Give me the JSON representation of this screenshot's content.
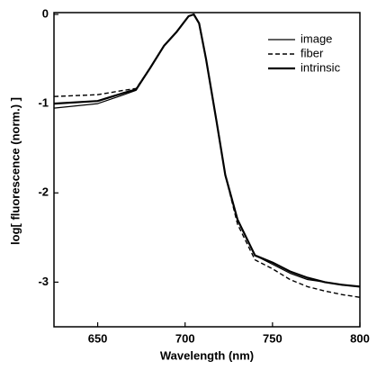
{
  "chart_data": {
    "type": "line",
    "x_label": "Wavelength (nm)",
    "y_label": "log[ fluorescence (norm.) ]",
    "x": [
      625,
      650,
      665,
      672,
      680,
      688,
      695,
      702,
      705,
      708,
      712,
      718,
      723,
      730,
      740,
      750,
      760,
      770,
      780,
      790,
      800
    ],
    "series": [
      {
        "name": "image",
        "color": "#000000",
        "width": 1.2,
        "dash": false,
        "values": [
          -1.05,
          -1.0,
          -0.9,
          -0.85,
          -0.6,
          -0.35,
          -0.2,
          -0.02,
          0,
          -0.1,
          -0.5,
          -1.2,
          -1.8,
          -2.3,
          -2.7,
          -2.8,
          -2.9,
          -2.97,
          -3.0,
          -3.03,
          -3.05
        ]
      },
      {
        "name": "fiber",
        "color": "#000000",
        "width": 1.4,
        "dash": true,
        "values": [
          -0.92,
          -0.9,
          -0.85,
          -0.83,
          -0.6,
          -0.35,
          -0.2,
          -0.02,
          0,
          -0.1,
          -0.5,
          -1.2,
          -1.8,
          -2.35,
          -2.75,
          -2.85,
          -2.97,
          -3.05,
          -3.1,
          -3.14,
          -3.17
        ]
      },
      {
        "name": "intrinsic",
        "color": "#000000",
        "width": 2.2,
        "dash": false,
        "values": [
          -1.0,
          -0.97,
          -0.88,
          -0.84,
          -0.6,
          -0.35,
          -0.2,
          -0.02,
          0,
          -0.1,
          -0.5,
          -1.2,
          -1.8,
          -2.3,
          -2.7,
          -2.78,
          -2.88,
          -2.95,
          -3.0,
          -3.03,
          -3.05
        ]
      }
    ],
    "xlim": [
      625,
      800
    ],
    "xticks": [
      650,
      700,
      750,
      800
    ],
    "ylim": [
      -3.5,
      0.02
    ],
    "yticks": [
      0,
      -1,
      -2,
      -3
    ],
    "legend": "top-right"
  }
}
